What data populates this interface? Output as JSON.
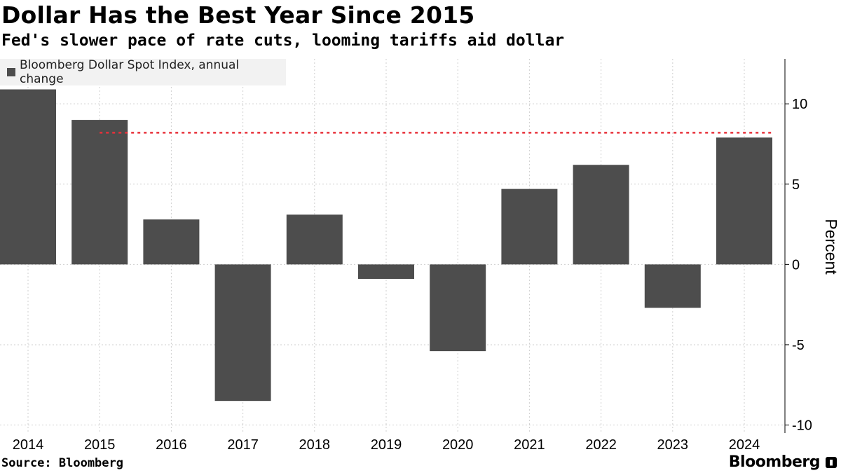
{
  "header": {
    "title": "Dollar Has the Best Year Since 2015",
    "subtitle": "Fed's slower pace of rate cuts, looming tariffs aid dollar"
  },
  "footer": {
    "source": "Source: Bloomberg",
    "brand": "Bloomberg"
  },
  "colors": {
    "bar": "#4d4d4d",
    "reference_line": "#e8303a",
    "grid": "#cfcfcf",
    "legend_bg": "#f2f2f2"
  },
  "chart_data": {
    "type": "bar",
    "title": "Dollar Has the Best Year Since 2015",
    "subtitle": "Fed's slower pace of rate cuts, looming tariffs aid dollar",
    "categories": [
      "2014",
      "2015",
      "2016",
      "2017",
      "2018",
      "2019",
      "2020",
      "2021",
      "2022",
      "2023",
      "2024"
    ],
    "series": [
      {
        "name": "Bloomberg Dollar Spot Index, annual change",
        "values": [
          10.9,
          9.0,
          2.8,
          -8.5,
          3.1,
          -0.9,
          -5.4,
          4.7,
          6.2,
          -2.7,
          7.9
        ]
      }
    ],
    "reference_line": {
      "value": 8.2,
      "from": "2015",
      "to": "2024",
      "style": "dotted",
      "color": "#e8303a"
    },
    "ylabel": "Percent",
    "xlabel": "",
    "ylim": [
      -10.5,
      12.8
    ],
    "yticks": [
      -10,
      -5,
      0,
      5,
      10
    ],
    "ytick_labels": [
      "-10",
      "-5",
      "0",
      "5",
      "10"
    ],
    "y_axis_position": "right",
    "grid": true,
    "legend": "top-left"
  }
}
